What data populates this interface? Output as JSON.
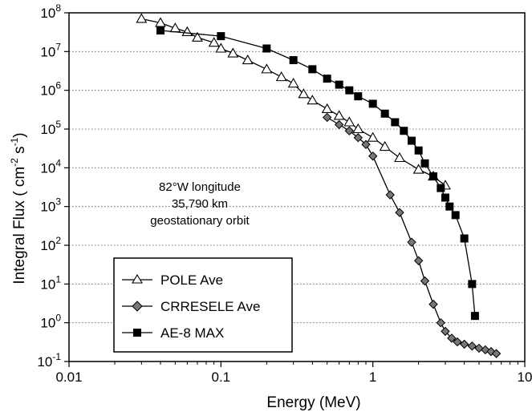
{
  "chart_data": {
    "type": "line",
    "xlabel": "Energy (MeV)",
    "ylabel_main": "Integral Flux ( cm",
    "ylabel_exp1": "-2",
    "ylabel_mid": " s",
    "ylabel_exp2": "-1",
    "ylabel_end": ")",
    "x_scale": "log",
    "y_scale": "log",
    "xlim": [
      0.01,
      10
    ],
    "ylim": [
      0.1,
      100000000
    ],
    "grid": "horizontal dotted",
    "legend_position": "bottom-left",
    "x_ticks": [
      {
        "value": 0.01,
        "label": "0.01"
      },
      {
        "value": 0.1,
        "label": "0.1"
      },
      {
        "value": 1,
        "label": "1"
      },
      {
        "value": 10,
        "label": "10"
      }
    ],
    "y_ticks": [
      {
        "exp": 8,
        "base": "10",
        "sup": "8"
      },
      {
        "exp": 7,
        "base": "10",
        "sup": "7"
      },
      {
        "exp": 6,
        "base": "10",
        "sup": "6"
      },
      {
        "exp": 5,
        "base": "10",
        "sup": "5"
      },
      {
        "exp": 4,
        "base": "10",
        "sup": "4"
      },
      {
        "exp": 3,
        "base": "10",
        "sup": "3"
      },
      {
        "exp": 2,
        "base": "10",
        "sup": "2"
      },
      {
        "exp": 1,
        "base": "10",
        "sup": "1"
      },
      {
        "exp": 0,
        "base": "10",
        "sup": "0"
      },
      {
        "exp": -1,
        "base": "10",
        "sup": "-1"
      }
    ],
    "annotation": [
      "82°W longitude",
      "35,790 km",
      "geostationary orbit"
    ],
    "series": [
      {
        "name": "POLE Ave",
        "marker": "open-triangle",
        "x": [
          0.03,
          0.04,
          0.05,
          0.06,
          0.07,
          0.09,
          0.1,
          0.12,
          0.15,
          0.2,
          0.25,
          0.3,
          0.35,
          0.4,
          0.5,
          0.6,
          0.7,
          0.8,
          1.0,
          1.2,
          1.5,
          2.0,
          2.5,
          3.0
        ],
        "y": [
          70000000,
          55000000,
          40000000,
          32000000,
          23000000,
          17000000,
          12000000,
          9000000,
          6000000,
          3500000,
          2200000,
          1500000,
          800000,
          550000,
          330000,
          220000,
          150000,
          100000,
          60000,
          35000,
          18000,
          9000,
          6000,
          3500
        ]
      },
      {
        "name": "CRRESELE Ave",
        "marker": "filled-diamond",
        "x": [
          0.5,
          0.6,
          0.7,
          0.8,
          0.9,
          1.0,
          1.3,
          1.5,
          1.8,
          2.0,
          2.2,
          2.5,
          2.8,
          3.0,
          3.3,
          3.6,
          4.0,
          4.5,
          5.0,
          5.5,
          6.0,
          6.5
        ],
        "y": [
          200000,
          130000,
          90000,
          60000,
          40000,
          20000,
          2000,
          700,
          120,
          40,
          12,
          3,
          1,
          0.6,
          0.4,
          0.32,
          0.28,
          0.25,
          0.22,
          0.2,
          0.18,
          0.16
        ]
      },
      {
        "name": "AE-8 MAX",
        "marker": "filled-square",
        "x": [
          0.04,
          0.1,
          0.2,
          0.3,
          0.4,
          0.5,
          0.6,
          0.7,
          0.8,
          1.0,
          1.2,
          1.4,
          1.6,
          1.8,
          2.0,
          2.2,
          2.5,
          2.8,
          3.0,
          3.2,
          3.5,
          4.0,
          4.5,
          4.7
        ],
        "y": [
          35000000,
          25000000,
          12000000,
          6000000,
          3500000,
          2000000,
          1400000,
          1000000,
          700000,
          450000,
          250000,
          150000,
          90000,
          50000,
          28000,
          13000,
          6000,
          3000,
          1700,
          1000,
          600,
          150,
          10,
          1.5
        ]
      }
    ]
  }
}
